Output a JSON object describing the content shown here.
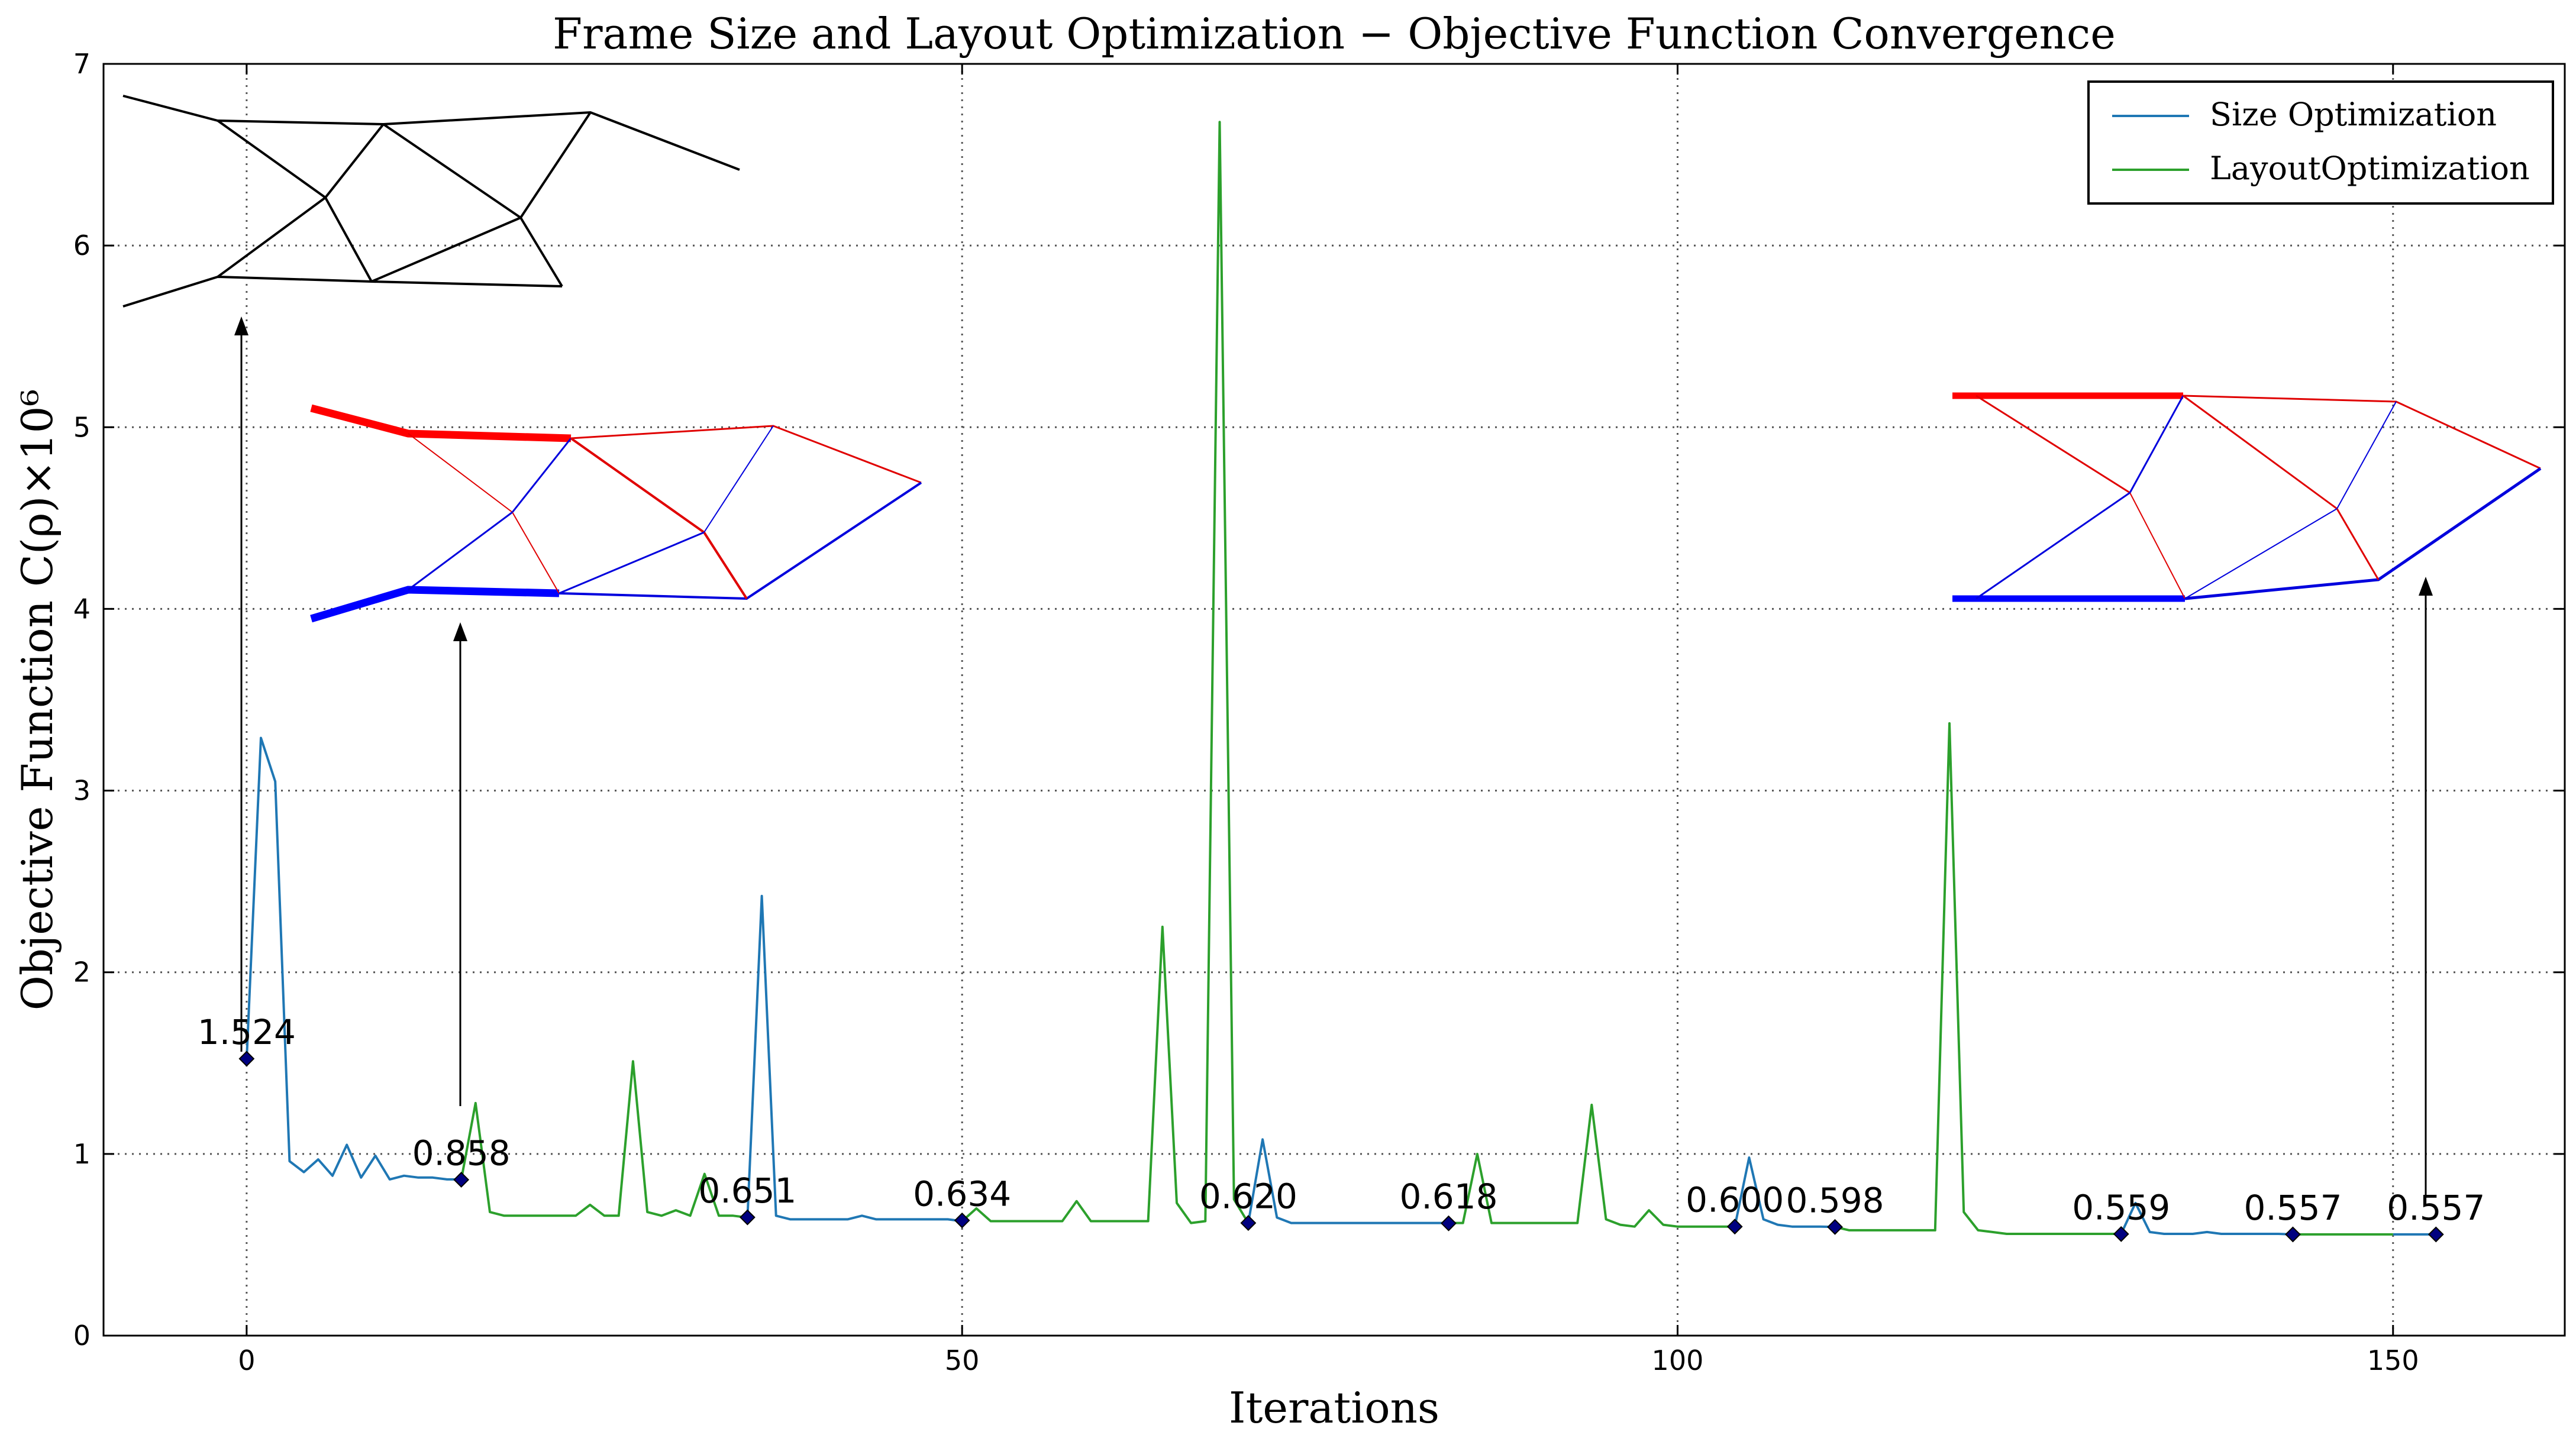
{
  "chart_data": {
    "type": "line",
    "title": "Frame Size and Layout Optimization − Objective Function Convergence",
    "xlabel": "Iterations",
    "ylabel": "Objective Function C(ρ)×10⁶",
    "xlim": [
      -10,
      162
    ],
    "ylim": [
      0,
      7
    ],
    "xticks": [
      0,
      50,
      100,
      150
    ],
    "yticks": [
      0,
      1,
      2,
      3,
      4,
      5,
      6,
      7
    ],
    "grid": true,
    "legend_position": "top-right",
    "colors": {
      "size": "#1f77b4",
      "layout": "#2ca02c",
      "marker": "#000080"
    },
    "series": [
      {
        "name": "Size Optimization",
        "segments": [
          [
            [
              0,
              1.52
            ],
            [
              1,
              3.29
            ],
            [
              2,
              3.05
            ],
            [
              3,
              0.96
            ],
            [
              4,
              0.9
            ],
            [
              5,
              0.97
            ],
            [
              6,
              0.88
            ],
            [
              7,
              1.05
            ],
            [
              8,
              0.87
            ],
            [
              9,
              0.99
            ],
            [
              10,
              0.86
            ],
            [
              11,
              0.88
            ],
            [
              12,
              0.87
            ],
            [
              13,
              0.87
            ],
            [
              14,
              0.86
            ],
            [
              15,
              0.86
            ]
          ],
          [
            [
              35,
              0.65
            ],
            [
              36,
              2.42
            ],
            [
              37,
              0.66
            ],
            [
              38,
              0.64
            ],
            [
              39,
              0.64
            ],
            [
              40,
              0.64
            ],
            [
              41,
              0.64
            ],
            [
              42,
              0.64
            ],
            [
              43,
              0.66
            ],
            [
              44,
              0.64
            ],
            [
              45,
              0.64
            ],
            [
              46,
              0.64
            ],
            [
              47,
              0.64
            ],
            [
              48,
              0.64
            ],
            [
              49,
              0.64
            ],
            [
              50,
              0.63
            ]
          ],
          [
            [
              70,
              0.62
            ],
            [
              71,
              1.08
            ],
            [
              72,
              0.65
            ],
            [
              73,
              0.62
            ],
            [
              74,
              0.62
            ],
            [
              75,
              0.62
            ],
            [
              76,
              0.62
            ],
            [
              77,
              0.62
            ],
            [
              78,
              0.62
            ],
            [
              79,
              0.62
            ],
            [
              80,
              0.62
            ],
            [
              81,
              0.62
            ],
            [
              82,
              0.62
            ],
            [
              83,
              0.62
            ],
            [
              84,
              0.62
            ]
          ],
          [
            [
              104,
              0.6
            ],
            [
              105,
              0.98
            ],
            [
              106,
              0.64
            ],
            [
              107,
              0.61
            ],
            [
              108,
              0.6
            ],
            [
              109,
              0.6
            ],
            [
              110,
              0.6
            ],
            [
              111,
              0.598
            ]
          ],
          [
            [
              131,
              0.56
            ],
            [
              132,
              0.73
            ],
            [
              133,
              0.57
            ],
            [
              134,
              0.56
            ],
            [
              135,
              0.56
            ],
            [
              136,
              0.56
            ],
            [
              137,
              0.57
            ],
            [
              138,
              0.56
            ],
            [
              139,
              0.56
            ],
            [
              140,
              0.56
            ],
            [
              141,
              0.56
            ],
            [
              142,
              0.56
            ],
            [
              143,
              0.557
            ]
          ],
          [
            [
              150,
              0.557
            ],
            [
              151,
              0.557
            ],
            [
              152,
              0.557
            ],
            [
              153,
              0.557
            ]
          ]
        ]
      },
      {
        "name": "LayoutOptimization",
        "segments": [
          [
            [
              15,
              0.86
            ],
            [
              16,
              1.28
            ],
            [
              17,
              0.68
            ],
            [
              18,
              0.66
            ],
            [
              19,
              0.66
            ],
            [
              20,
              0.66
            ],
            [
              21,
              0.66
            ],
            [
              22,
              0.66
            ],
            [
              23,
              0.66
            ],
            [
              24,
              0.72
            ],
            [
              25,
              0.66
            ],
            [
              26,
              0.66
            ],
            [
              27,
              1.51
            ],
            [
              28,
              0.68
            ],
            [
              29,
              0.66
            ],
            [
              30,
              0.69
            ],
            [
              31,
              0.66
            ],
            [
              32,
              0.89
            ],
            [
              33,
              0.66
            ],
            [
              34,
              0.66
            ],
            [
              35,
              0.65
            ]
          ],
          [
            [
              50,
              0.63
            ],
            [
              51,
              0.7
            ],
            [
              52,
              0.63
            ],
            [
              53,
              0.63
            ],
            [
              54,
              0.63
            ],
            [
              55,
              0.63
            ],
            [
              56,
              0.63
            ],
            [
              57,
              0.63
            ],
            [
              58,
              0.74
            ],
            [
              59,
              0.63
            ],
            [
              60,
              0.63
            ],
            [
              61,
              0.63
            ],
            [
              62,
              0.63
            ],
            [
              63,
              0.63
            ],
            [
              64,
              2.25
            ],
            [
              65,
              0.73
            ],
            [
              66,
              0.62
            ],
            [
              67,
              0.63
            ],
            [
              68,
              6.68
            ],
            [
              69,
              0.75
            ],
            [
              70,
              0.62
            ]
          ],
          [
            [
              84,
              0.62
            ],
            [
              85,
              0.62
            ],
            [
              86,
              1.0
            ],
            [
              87,
              0.62
            ],
            [
              88,
              0.62
            ],
            [
              89,
              0.62
            ],
            [
              90,
              0.62
            ],
            [
              91,
              0.62
            ],
            [
              92,
              0.62
            ],
            [
              93,
              0.62
            ],
            [
              94,
              1.27
            ],
            [
              95,
              0.64
            ],
            [
              96,
              0.61
            ],
            [
              97,
              0.6
            ],
            [
              98,
              0.69
            ],
            [
              99,
              0.61
            ],
            [
              100,
              0.6
            ],
            [
              101,
              0.6
            ],
            [
              102,
              0.6
            ],
            [
              103,
              0.6
            ],
            [
              104,
              0.6
            ]
          ],
          [
            [
              111,
              0.598
            ],
            [
              112,
              0.58
            ],
            [
              113,
              0.58
            ],
            [
              114,
              0.58
            ],
            [
              115,
              0.58
            ],
            [
              116,
              0.58
            ],
            [
              117,
              0.58
            ],
            [
              118,
              0.58
            ],
            [
              119,
              3.37
            ],
            [
              120,
              0.68
            ],
            [
              121,
              0.58
            ],
            [
              122,
              0.57
            ],
            [
              123,
              0.56
            ],
            [
              124,
              0.56
            ],
            [
              125,
              0.56
            ],
            [
              126,
              0.56
            ],
            [
              127,
              0.56
            ],
            [
              128,
              0.56
            ],
            [
              129,
              0.56
            ],
            [
              130,
              0.56
            ],
            [
              131,
              0.56
            ]
          ],
          [
            [
              143,
              0.557
            ],
            [
              144,
              0.557
            ],
            [
              145,
              0.557
            ],
            [
              146,
              0.557
            ],
            [
              147,
              0.557
            ],
            [
              148,
              0.557
            ],
            [
              149,
              0.557
            ],
            [
              150,
              0.557
            ]
          ]
        ]
      }
    ],
    "markers": [
      {
        "x": 0,
        "y": 1.524,
        "label": "1.524"
      },
      {
        "x": 15,
        "y": 0.858,
        "label": "0.858"
      },
      {
        "x": 35,
        "y": 0.651,
        "label": "0.651"
      },
      {
        "x": 50,
        "y": 0.634,
        "label": "0.634"
      },
      {
        "x": 70,
        "y": 0.62,
        "label": "0.620"
      },
      {
        "x": 84,
        "y": 0.618,
        "label": "0.618"
      },
      {
        "x": 104,
        "y": 0.6,
        "label": "0.600"
      },
      {
        "x": 111,
        "y": 0.598,
        "label": "0.598"
      },
      {
        "x": 131,
        "y": 0.559,
        "label": "0.559"
      },
      {
        "x": 143,
        "y": 0.557,
        "label": "0.557"
      },
      {
        "x": 153,
        "y": 0.557,
        "label": "0.557"
      }
    ]
  }
}
